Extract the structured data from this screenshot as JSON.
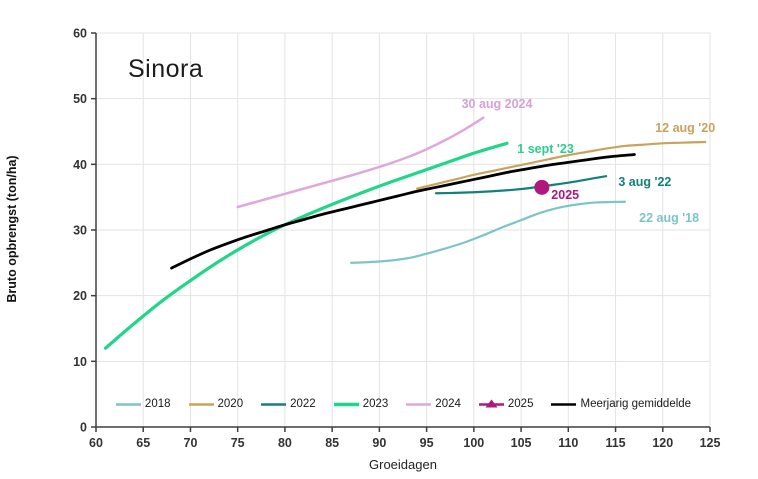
{
  "chart_data": {
    "type": "line",
    "title": "Sinora",
    "xlabel": "Groeidagen",
    "ylabel": "Bruto opbrengst (ton/ha)",
    "xlim": [
      60,
      125
    ],
    "ylim": [
      0,
      60
    ],
    "xticks": [
      60,
      65,
      70,
      75,
      80,
      85,
      90,
      95,
      100,
      105,
      110,
      115,
      120,
      125
    ],
    "yticks": [
      0,
      10,
      20,
      30,
      40,
      50,
      60
    ],
    "grid": true,
    "legend_position": "bottom",
    "series": [
      {
        "name": "2018",
        "color": "#7cc5c6",
        "width": 2.2,
        "type": "line",
        "data": [
          [
            87,
            25.0
          ],
          [
            90,
            25.2
          ],
          [
            93,
            25.7
          ],
          [
            95,
            26.4
          ],
          [
            97,
            27.2
          ],
          [
            99,
            28.1
          ],
          [
            101,
            29.2
          ],
          [
            103,
            30.4
          ],
          [
            105,
            31.5
          ],
          [
            107,
            32.6
          ],
          [
            109,
            33.4
          ],
          [
            111,
            33.9
          ],
          [
            113,
            34.2
          ],
          [
            116,
            34.3
          ]
        ]
      },
      {
        "name": "2020",
        "color": "#c8a35c",
        "width": 2.2,
        "type": "line",
        "data": [
          [
            94,
            36.3
          ],
          [
            96,
            37.0
          ],
          [
            98,
            37.7
          ],
          [
            100,
            38.4
          ],
          [
            102,
            39.0
          ],
          [
            104,
            39.6
          ],
          [
            106,
            40.2
          ],
          [
            108,
            40.8
          ],
          [
            110,
            41.4
          ],
          [
            112,
            41.9
          ],
          [
            114,
            42.4
          ],
          [
            116,
            42.8
          ],
          [
            118,
            43.0
          ],
          [
            120,
            43.2
          ],
          [
            122,
            43.3
          ],
          [
            124.5,
            43.4
          ]
        ]
      },
      {
        "name": "2022",
        "color": "#12807d",
        "width": 2.2,
        "type": "line",
        "data": [
          [
            96,
            35.6
          ],
          [
            98,
            35.65
          ],
          [
            100,
            35.75
          ],
          [
            102,
            35.9
          ],
          [
            104,
            36.1
          ],
          [
            106,
            36.4
          ],
          [
            108,
            36.8
          ],
          [
            110,
            37.2
          ],
          [
            112,
            37.7
          ],
          [
            114,
            38.2
          ]
        ]
      },
      {
        "name": "2023",
        "color": "#22d689",
        "width": 3.2,
        "type": "line",
        "data": [
          [
            61,
            12.0
          ],
          [
            64,
            15.7
          ],
          [
            67,
            19.2
          ],
          [
            70,
            22.3
          ],
          [
            73,
            25.2
          ],
          [
            76,
            27.8
          ],
          [
            79,
            30.1
          ],
          [
            82,
            32.1
          ],
          [
            85,
            33.9
          ],
          [
            88,
            35.6
          ],
          [
            91,
            37.2
          ],
          [
            94,
            38.7
          ],
          [
            97,
            40.2
          ],
          [
            100,
            41.7
          ],
          [
            103.5,
            43.2
          ]
        ]
      },
      {
        "name": "2024",
        "color": "#dfa8da",
        "width": 2.5,
        "type": "line",
        "data": [
          [
            75,
            33.5
          ],
          [
            78,
            34.7
          ],
          [
            81,
            35.9
          ],
          [
            84,
            37.1
          ],
          [
            87,
            38.3
          ],
          [
            90,
            39.6
          ],
          [
            93,
            41.1
          ],
          [
            95,
            42.3
          ],
          [
            97,
            43.7
          ],
          [
            99,
            45.3
          ],
          [
            101,
            47.1
          ]
        ]
      },
      {
        "name": "2025",
        "color": "#b0177f",
        "type": "point",
        "marker_radius": 7.5,
        "data": [
          [
            107.2,
            36.5
          ]
        ]
      },
      {
        "name": "Meerjarig gemiddelde",
        "color": "#000000",
        "width": 2.8,
        "type": "line",
        "data": [
          [
            68,
            24.2
          ],
          [
            70,
            25.6
          ],
          [
            72,
            26.9
          ],
          [
            74,
            28.0
          ],
          [
            76,
            29.0
          ],
          [
            78,
            29.9
          ],
          [
            80,
            30.8
          ],
          [
            82,
            31.6
          ],
          [
            84,
            32.4
          ],
          [
            86,
            33.1
          ],
          [
            88,
            33.8
          ],
          [
            90,
            34.5
          ],
          [
            92,
            35.2
          ],
          [
            94,
            35.9
          ],
          [
            96,
            36.5
          ],
          [
            98,
            37.1
          ],
          [
            100,
            37.7
          ],
          [
            102,
            38.3
          ],
          [
            104,
            38.9
          ],
          [
            106,
            39.4
          ],
          [
            108,
            39.9
          ],
          [
            110,
            40.3
          ],
          [
            112,
            40.7
          ],
          [
            114,
            41.1
          ],
          [
            117,
            41.5
          ]
        ]
      }
    ],
    "annotations": [
      {
        "text": "30 aug 2024",
        "x": 98.7,
        "y": 48.6,
        "color": "#d9a0d4",
        "size": 12.5
      },
      {
        "text": "12 aug '20",
        "x": 119.2,
        "y": 44.9,
        "color": "#c8a35c",
        "size": 12.5
      },
      {
        "text": "1 sept '23",
        "x": 104.6,
        "y": 41.7,
        "color": "#2bcd8c",
        "size": 12.5
      },
      {
        "text": "3 aug '22",
        "x": 115.3,
        "y": 36.7,
        "color": "#12807d",
        "size": 12.5
      },
      {
        "text": "2025",
        "x": 108.2,
        "y": 34.7,
        "color": "#b0177f",
        "size": 14.5
      },
      {
        "text": "22 aug '18",
        "x": 117.5,
        "y": 31.2,
        "color": "#7cc5c6",
        "size": 12.5
      }
    ],
    "legend": [
      {
        "label": "2018",
        "color": "#7cc5c6",
        "marker": "line"
      },
      {
        "label": "2020",
        "color": "#c8a35c",
        "marker": "line"
      },
      {
        "label": "2022",
        "color": "#12807d",
        "marker": "line"
      },
      {
        "label": "2023",
        "color": "#22d689",
        "marker": "line-thick"
      },
      {
        "label": "2024",
        "color": "#dfa8da",
        "marker": "line"
      },
      {
        "label": "2025",
        "color": "#b0177f",
        "marker": "line-triangle"
      },
      {
        "label": "Meerjarig gemiddelde",
        "color": "#000000",
        "marker": "line"
      }
    ],
    "axis_color": "#3f3f3f",
    "grid_color": "#e3e3e3"
  }
}
